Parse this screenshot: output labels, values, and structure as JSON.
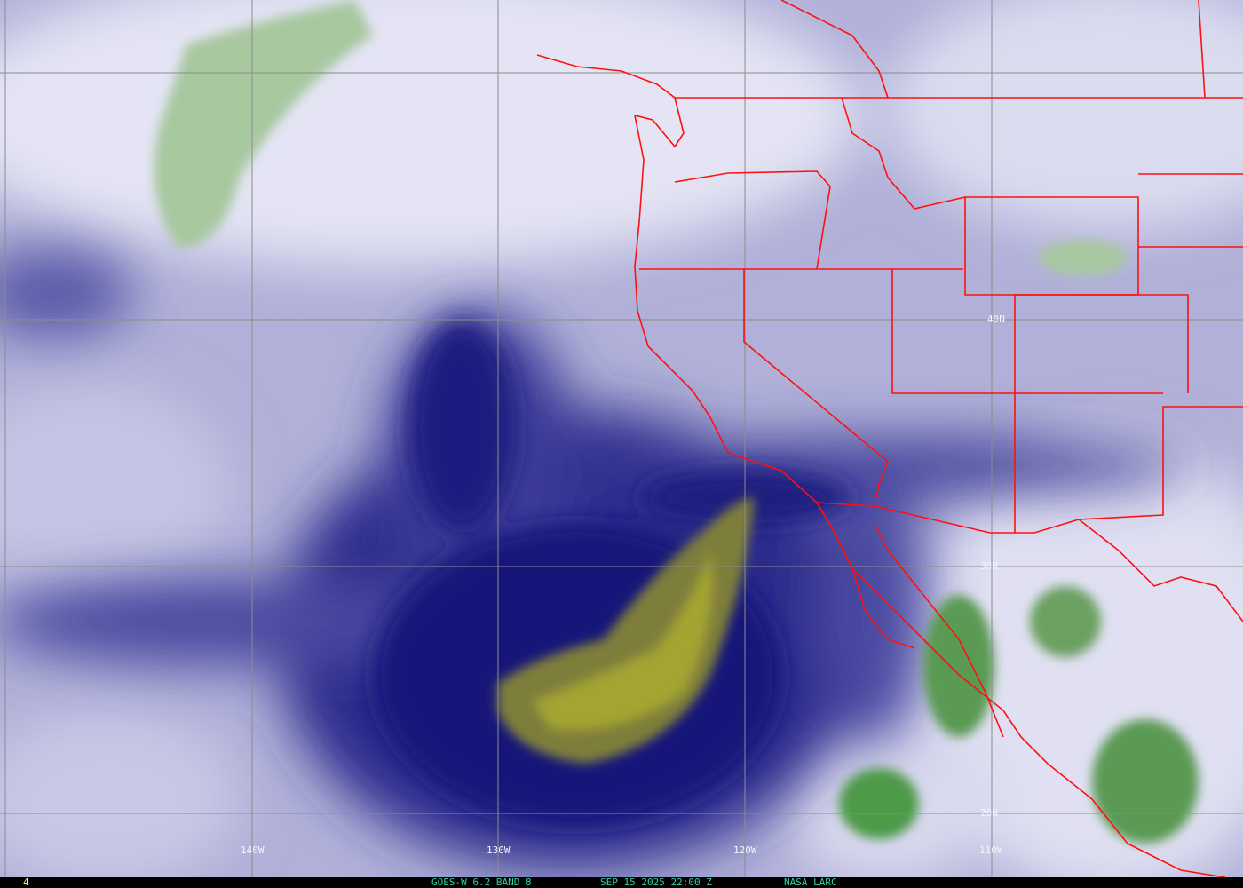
{
  "image": {
    "type": "water vapor satellite image with map overlay",
    "colors": {
      "moist_bright": "#f0f0fa",
      "mid": "#a8a8d4",
      "dry_navy": "#14147a",
      "very_dry_yellow": "#a0a030",
      "cold_cloud_green": "#5a9a50",
      "borders": "#ff1010",
      "grid": "#8a8a8a",
      "footer_text": "#30d0a0",
      "frame_number": "#ffff40"
    }
  },
  "grid_labels": {
    "lon": [
      "140W",
      "130W",
      "120W",
      "110W"
    ],
    "lat": [
      "40N",
      "30N",
      "20N"
    ]
  },
  "footer": {
    "frame": "4",
    "satellite": "GOES-W 6.2 BAND 8",
    "datetime": "SEP 15 2025 22:00 Z",
    "source": "NASA LARC"
  }
}
